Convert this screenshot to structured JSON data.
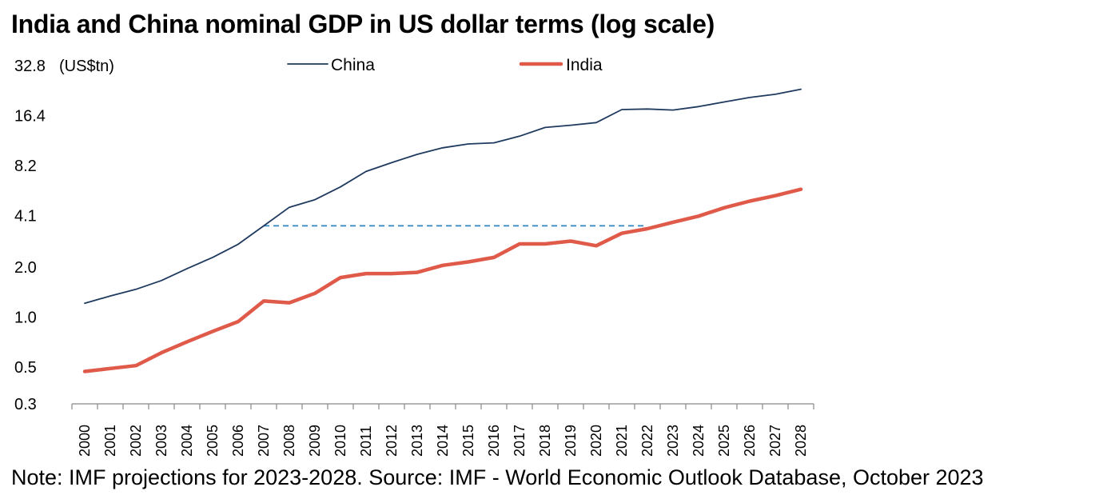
{
  "chart_data": {
    "type": "line",
    "title": "India and China nominal GDP in US dollar terms (log scale)",
    "note": "Note: IMF projections for 2023-2028. Source: IMF - World Economic Outlook Database, October 2023",
    "ylabel": "(US$tn)",
    "yscale": "log",
    "ylim": [
      0.3,
      32.8
    ],
    "yticks": [
      0.3,
      0.5,
      1.0,
      2.0,
      4.1,
      8.2,
      16.4,
      32.8
    ],
    "ytick_labels": [
      "0.3",
      "0.5",
      "1.0",
      "2.0",
      "4.1",
      "8.2",
      "16.4",
      "32.8"
    ],
    "x": [
      "2000",
      "2001",
      "2002",
      "2003",
      "2004",
      "2005",
      "2006",
      "2007",
      "2008",
      "2009",
      "2010",
      "2011",
      "2012",
      "2013",
      "2014",
      "2015",
      "2016",
      "2017",
      "2018",
      "2019",
      "2020",
      "2021",
      "2022",
      "2023",
      "2024",
      "2025",
      "2026",
      "2027",
      "2028"
    ],
    "grid": false,
    "legend_position": "top",
    "series": [
      {
        "name": "China",
        "color": "#1f3a5f",
        "line_width": "thin",
        "values": [
          1.21,
          1.34,
          1.47,
          1.66,
          1.96,
          2.29,
          2.75,
          3.55,
          4.59,
          5.1,
          6.09,
          7.55,
          8.53,
          9.57,
          10.48,
          11.06,
          11.23,
          12.31,
          13.89,
          14.34,
          14.86,
          17.82,
          17.96,
          17.7,
          18.56,
          19.8,
          21.06,
          22.01,
          23.61
        ]
      },
      {
        "name": "India",
        "color": "#e05a4a",
        "line_width": "thick",
        "values": [
          0.47,
          0.49,
          0.51,
          0.61,
          0.71,
          0.82,
          0.94,
          1.25,
          1.22,
          1.39,
          1.73,
          1.83,
          1.83,
          1.86,
          2.05,
          2.15,
          2.29,
          2.76,
          2.76,
          2.87,
          2.69,
          3.2,
          3.41,
          3.73,
          4.06,
          4.56,
          5.0,
          5.39,
          5.89
        ]
      }
    ],
    "annotations": [
      {
        "type": "dashed-horizontal",
        "color": "#2e86c1",
        "from_x": "2007",
        "to_x": "2022",
        "y": 3.55
      }
    ]
  }
}
